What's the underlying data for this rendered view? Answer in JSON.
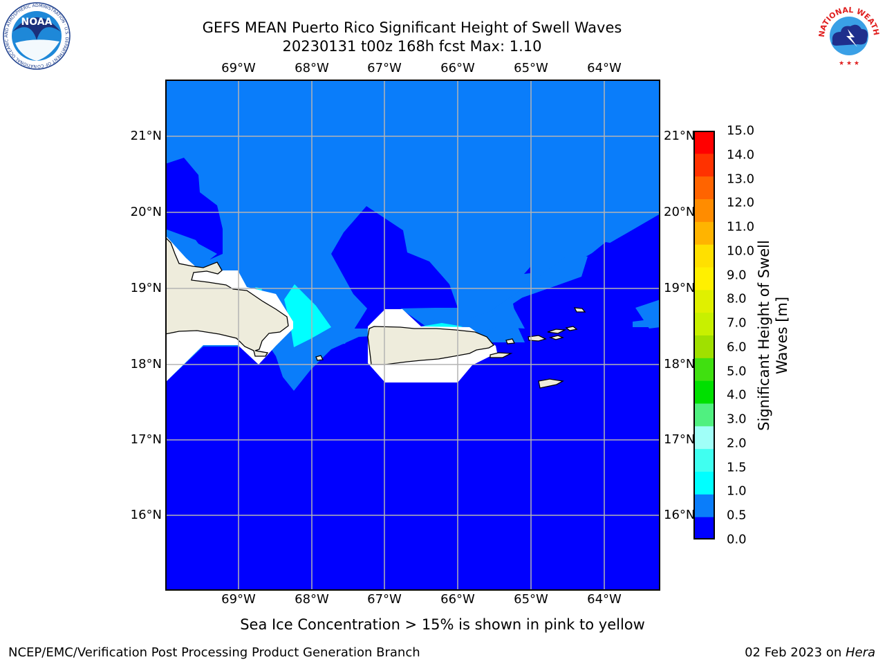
{
  "title": {
    "line1": "GEFS MEAN Puerto Rico Significant Height of Swell Waves",
    "line2": "20230131 t00z 168h fcst   Max: 1.10"
  },
  "map": {
    "lon_labels": [
      "69°W",
      "68°W",
      "67°W",
      "66°W",
      "65°W",
      "64°W"
    ],
    "lat_labels": [
      "21°N",
      "20°N",
      "19°N",
      "18°N",
      "17°N",
      "16°N"
    ],
    "colors": {
      "band_0_05": "#0000ff",
      "band_05_1": "#0a7dfa",
      "band_1_15": "#00ffff",
      "land": "#eeecdc",
      "grid": "#b4b4b4"
    }
  },
  "colorbar": {
    "label": "Significant Height of Swell Waves [m]",
    "label_line1": "Significant Height of Swell",
    "label_line2": "Waves [m]",
    "ticks": [
      "15.0",
      "14.0",
      "13.0",
      "12.0",
      "11.0",
      "10.0",
      "9.0",
      "8.0",
      "7.0",
      "6.0",
      "5.0",
      "4.0",
      "3.0",
      "2.0",
      "1.5",
      "1.0",
      "0.5",
      "0.0"
    ],
    "colors": [
      "#0000ff",
      "#0a7dfa",
      "#00ffff",
      "#40fff0",
      "#a0fff8",
      "#50f080",
      "#00e000",
      "#40e010",
      "#a0e000",
      "#c8f000",
      "#e0f000",
      "#fff000",
      "#ffe000",
      "#ffb400",
      "#ff8c00",
      "#ff6400",
      "#ff3200",
      "#ff0000"
    ]
  },
  "sea_ice_note": "Sea Ice Concentration > 15% is shown in pink to yellow",
  "footer": {
    "left": "NCEP/EMC/Verification Post Processing Product Generation Branch",
    "right_date": "02 Feb 2023 on ",
    "right_machine": "Hera"
  },
  "logos": {
    "noaa_text": "NOAA",
    "noaa_ring": "NATIONAL OCEANIC AND ATMOSPHERIC ADMINISTRATION · U.S. DEPARTMENT OF COMMERCE",
    "nws_ring": "NATIONAL WEATHER SERVICE"
  }
}
